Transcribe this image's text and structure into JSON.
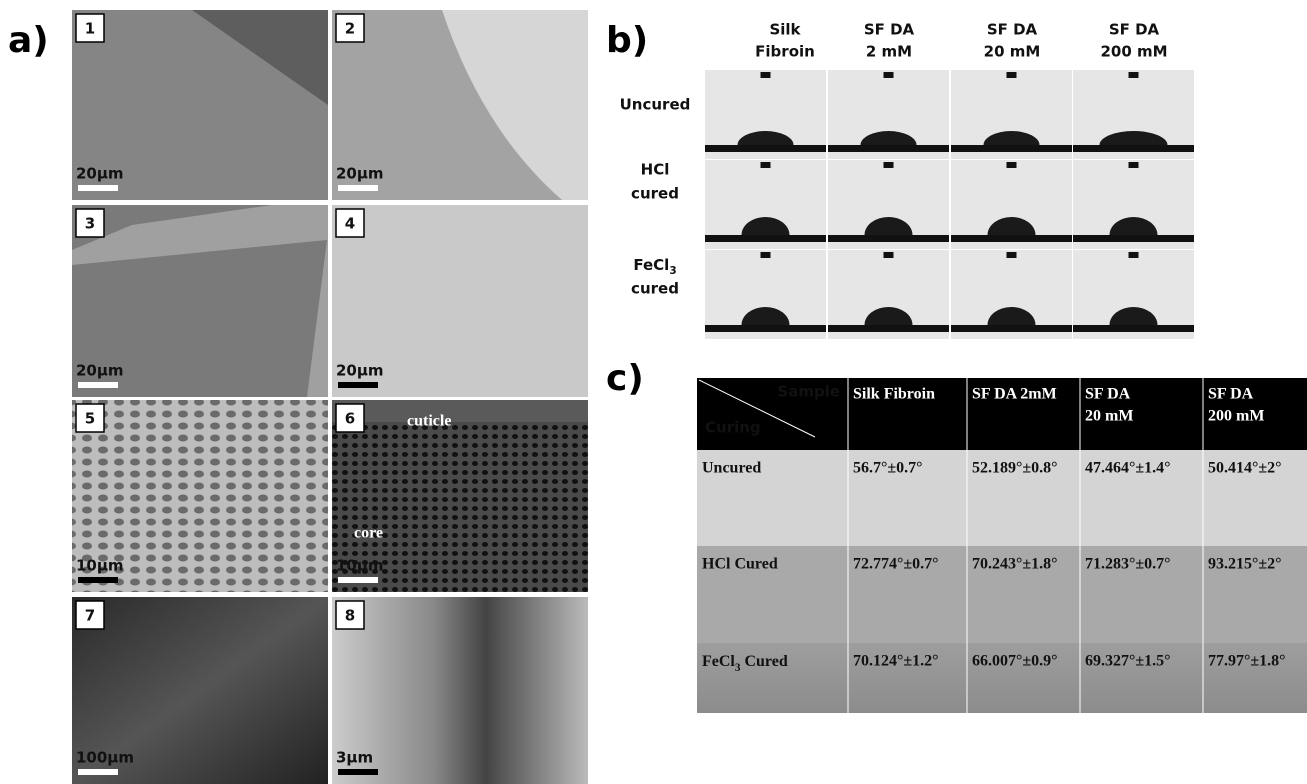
{
  "panel_a": {
    "label": "a)",
    "images": [
      {
        "number": "1",
        "scale_bar": "20µm"
      },
      {
        "number": "2",
        "scale_bar": "20µm"
      },
      {
        "number": "3",
        "scale_bar": "20µm"
      },
      {
        "number": "4",
        "scale_bar": "20µm"
      },
      {
        "number": "5",
        "scale_bar": "10µm"
      },
      {
        "number": "6",
        "scale_bar": "10µm",
        "annotations": [
          "cuticle",
          "core"
        ]
      },
      {
        "number": "7",
        "scale_bar": "100µm"
      },
      {
        "number": "8",
        "scale_bar": "3µm"
      }
    ]
  },
  "panel_b": {
    "label": "b)",
    "columns": [
      [
        "Silk",
        "Fibroin"
      ],
      [
        "SF DA",
        "2 mM"
      ],
      [
        "SF DA",
        "20 mM"
      ],
      [
        "SF DA",
        "200 mM"
      ]
    ],
    "rows": [
      [
        "Uncured"
      ],
      [
        "HCl",
        "cured"
      ],
      [
        {
          "text": "FeCl",
          "sub": "3"
        },
        "cured"
      ]
    ]
  },
  "panel_c": {
    "label": "c)",
    "table": {
      "corner": {
        "top": "Sample",
        "bottom": "Curing"
      },
      "columns": [
        [
          "Silk Fibroin"
        ],
        [
          "SF DA 2mM"
        ],
        [
          "SF DA",
          "20 mM"
        ],
        [
          "SF DA",
          "200 mM"
        ]
      ],
      "rows": [
        {
          "label": "Uncured",
          "values": [
            "56.7°±0.7°",
            "52.189°±0.8°",
            "47.464°±1.4°",
            "50.414°±2°"
          ]
        },
        {
          "label": "HCl Cured",
          "values": [
            "72.774°±0.7°",
            "70.243°±1.8°",
            "71.283°±0.7°",
            "93.215°±2°"
          ]
        },
        {
          "label": {
            "text": "FeCl",
            "sub": "3",
            "rest": " Cured"
          },
          "values": [
            "70.124°±1.2°",
            "66.007°±0.9°",
            "69.327°±1.5°",
            "77.97°±1.8°"
          ]
        }
      ]
    }
  }
}
